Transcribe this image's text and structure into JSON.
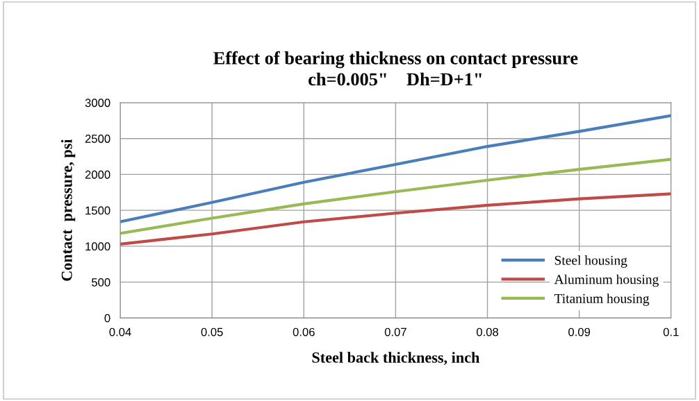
{
  "chart_data": {
    "type": "line",
    "title": "Effect of bearing thickness on contact pressure\nch=0.005\"    Dh=D+1\"",
    "xlabel": "Steel back thickness, inch",
    "ylabel": "Contact  pressure, psi",
    "x": [
      0.04,
      0.05,
      0.06,
      0.07,
      0.08,
      0.09,
      0.1
    ],
    "series": [
      {
        "name": "Steel housing",
        "color": "#4a7ebb",
        "values": [
          1340,
          1610,
          1890,
          2140,
          2390,
          2600,
          2820
        ]
      },
      {
        "name": "Aluminum housing",
        "color": "#be4b48",
        "values": [
          1030,
          1170,
          1340,
          1460,
          1570,
          1660,
          1730
        ]
      },
      {
        "name": "Titanium housing",
        "color": "#98b954",
        "values": [
          1180,
          1390,
          1590,
          1760,
          1920,
          2070,
          2210
        ]
      }
    ],
    "xlim": [
      0.04,
      0.1
    ],
    "xticks": [
      0.04,
      0.05,
      0.06,
      0.07,
      0.08,
      0.09,
      0.1
    ],
    "ylim": [
      0,
      3000
    ],
    "yticks": [
      0,
      500,
      1000,
      1500,
      2000,
      2500,
      3000
    ],
    "grid": true,
    "legend": "bottom right",
    "marker": "none",
    "line_style": "solid"
  }
}
